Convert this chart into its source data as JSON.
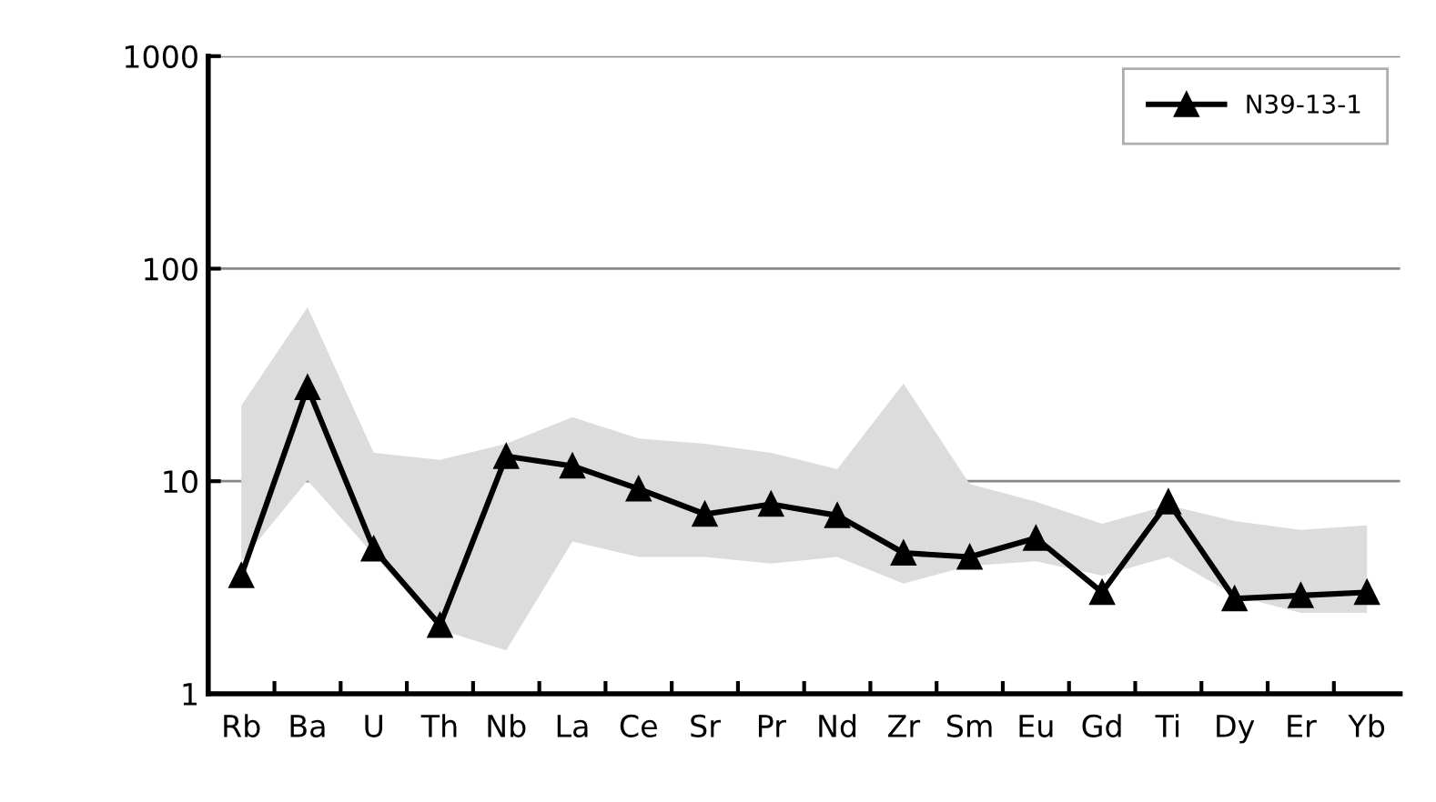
{
  "chart_data": {
    "type": "line",
    "categories": [
      "Rb",
      "Ba",
      "U",
      "Th",
      "Nb",
      "La",
      "Ce",
      "Sr",
      "Pr",
      "Nd",
      "Zr",
      "Sm",
      "Eu",
      "Gd",
      "Ti",
      "Dy",
      "Er",
      "Yb"
    ],
    "series": [
      {
        "name": "N39-13-1",
        "color": "#000000",
        "values": [
          3.6,
          27.6,
          4.8,
          2.1,
          13.1,
          11.8,
          9.2,
          7.0,
          7.8,
          6.9,
          4.6,
          4.4,
          5.4,
          3.0,
          8.0,
          2.8,
          2.9,
          3.0
        ],
        "lower": [
          4.2,
          10.1,
          4.5,
          2.0,
          1.6,
          5.2,
          4.4,
          4.4,
          4.1,
          4.4,
          3.3,
          4.0,
          4.2,
          3.6,
          4.4,
          2.9,
          2.4,
          2.4
        ],
        "upper": [
          22.7,
          66,
          13.6,
          12.6,
          15,
          20,
          15.9,
          15,
          13.6,
          11.4,
          28.8,
          9.7,
          8.0,
          6.3,
          7.7,
          6.5,
          5.9,
          6.2
        ]
      }
    ],
    "log": "y",
    "ylim": [
      1,
      1000
    ],
    "yticks": [
      1,
      10,
      100,
      1000
    ],
    "grid": "y",
    "legend": "top right",
    "marker": "triangle",
    "line_style": "solid"
  }
}
